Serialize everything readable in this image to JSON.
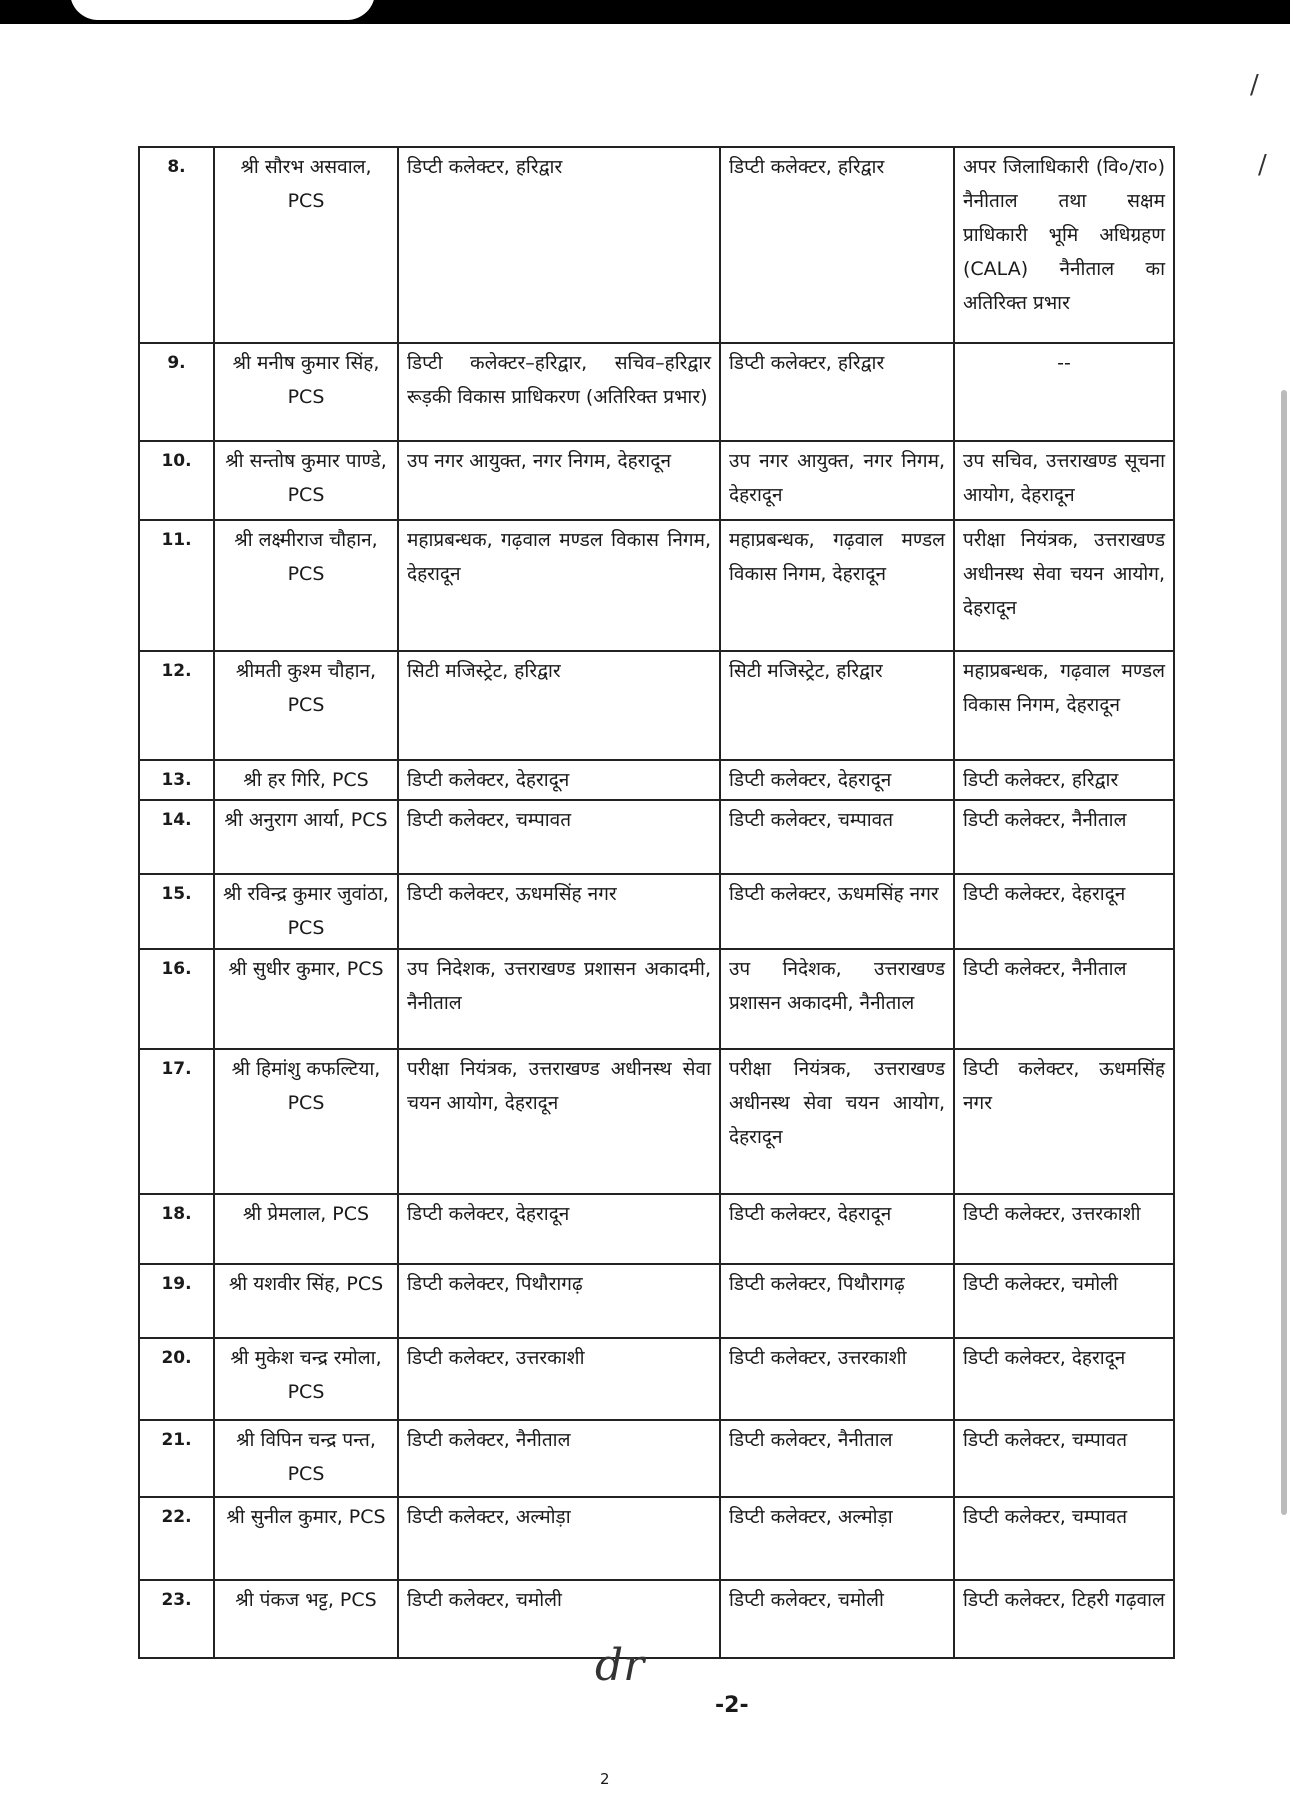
{
  "page": {
    "page_marker": "-2-",
    "page_number": "2",
    "signature": "dr"
  },
  "rows": [
    {
      "no": "8.",
      "name": "श्री सौरभ असवाल, PCS",
      "current": "डिप्टी कलेक्टर, हरिद्वार",
      "retained": "डिप्टी कलेक्टर, हरिद्वार",
      "new": "अपर जिलाधिकारी (वि०/रा०) नैनीताल तथा सक्षम प्राधिकारी भूमि अधिग्रहण (CALA) नैनीताल का अतिरिक्त प्रभार"
    },
    {
      "no": "9.",
      "name": "श्री मनीष कुमार सिंह, PCS",
      "current": "डिप्टी कलेक्टर–हरिद्वार, सचिव–हरिद्वार रूड़की विकास प्राधिकरण (अतिरिक्त प्रभार)",
      "retained": "डिप्टी कलेक्टर, हरिद्वार",
      "new": "--"
    },
    {
      "no": "10.",
      "name": "श्री सन्तोष कुमार पाण्डे, PCS",
      "current": "उप नगर आयुक्त, नगर निगम, देहरादून",
      "retained": "उप नगर आयुक्त, नगर निगम, देहरादून",
      "new": "उप सचिव, उत्तराखण्ड सूचना आयोग, देहरादून"
    },
    {
      "no": "11.",
      "name": "श्री लक्ष्मीराज चौहान, PCS",
      "current": "महाप्रबन्धक, गढ़वाल मण्डल विकास निगम, देहरादून",
      "retained": "महाप्रबन्धक, गढ़वाल मण्डल विकास निगम, देहरादून",
      "new": "परीक्षा नियंत्रक, उत्तराखण्ड अधीनस्थ सेवा चयन आयोग, देहरादून"
    },
    {
      "no": "12.",
      "name": "श्रीमती कुश्म चौहान, PCS",
      "current": "सिटी मजिस्ट्रेट, हरिद्वार",
      "retained": "सिटी मजिस्ट्रेट, हरिद्वार",
      "new": "महाप्रबन्धक, गढ़वाल मण्डल विकास निगम, देहरादून"
    },
    {
      "no": "13.",
      "name": "श्री हर गिरि, PCS",
      "current": "डिप्टी कलेक्टर, देहरादून",
      "retained": "डिप्टी कलेक्टर, देहरादून",
      "new": "डिप्टी कलेक्टर, हरिद्वार"
    },
    {
      "no": "14.",
      "name": "श्री अनुराग आर्या, PCS",
      "current": "डिप्टी कलेक्टर, चम्पावत",
      "retained": "डिप्टी कलेक्टर, चम्पावत",
      "new": "डिप्टी कलेक्टर, नैनीताल"
    },
    {
      "no": "15.",
      "name": "श्री रविन्द्र कुमार जुवांठा, PCS",
      "current": "डिप्टी कलेक्टर, ऊधमसिंह नगर",
      "retained": "डिप्टी कलेक्टर, ऊधमसिंह नगर",
      "new": "डिप्टी कलेक्टर, देहरादून"
    },
    {
      "no": "16.",
      "name": "श्री सुधीर कुमार, PCS",
      "current": "उप निदेशक, उत्तराखण्ड प्रशासन अकादमी, नैनीताल",
      "retained": "उप निदेशक, उत्तराखण्ड प्रशासन अकादमी, नैनीताल",
      "new": "डिप्टी कलेक्टर, नैनीताल"
    },
    {
      "no": "17.",
      "name": "श्री हिमांशु कफल्टिया, PCS",
      "current": "परीक्षा नियंत्रक, उत्तराखण्ड अधीनस्थ सेवा चयन आयोग, देहरादून",
      "retained": "परीक्षा नियंत्रक, उत्तराखण्ड अधीनस्थ सेवा चयन आयोग, देहरादून",
      "new": "डिप्टी कलेक्टर, ऊधमसिंह नगर"
    },
    {
      "no": "18.",
      "name": "श्री प्रेमलाल, PCS",
      "current": "डिप्टी कलेक्टर, देहरादून",
      "retained": "डिप्टी कलेक्टर, देहरादून",
      "new": "डिप्टी कलेक्टर, उत्तरकाशी"
    },
    {
      "no": "19.",
      "name": "श्री यशवीर सिंह, PCS",
      "current": "डिप्टी कलेक्टर, पिथौरागढ़",
      "retained": "डिप्टी कलेक्टर, पिथौरागढ़",
      "new": "डिप्टी कलेक्टर, चमोली"
    },
    {
      "no": "20.",
      "name": "श्री मुकेश चन्द्र रमोला, PCS",
      "current": "डिप्टी कलेक्टर, उत्तरकाशी",
      "retained": "डिप्टी कलेक्टर, उत्तरकाशी",
      "new": "डिप्टी कलेक्टर, देहरादून"
    },
    {
      "no": "21.",
      "name": "श्री विपिन चन्द्र पन्त, PCS",
      "current": "डिप्टी कलेक्टर, नैनीताल",
      "retained": "डिप्टी कलेक्टर, नैनीताल",
      "new": "डिप्टी कलेक्टर, चम्पावत"
    },
    {
      "no": "22.",
      "name": "श्री सुनील कुमार, PCS",
      "current": "डिप्टी कलेक्टर, अल्मोड़ा",
      "retained": "डिप्टी कलेक्टर, अल्मोड़ा",
      "new": "डिप्टी कलेक्टर, चम्पावत"
    },
    {
      "no": "23.",
      "name": "श्री पंकज भट्ट, PCS",
      "current": "डिप्टी कलेक्टर, चमोली",
      "retained": "डिप्टी कलेक्टर, चमोली",
      "new": "डिप्टी कलेक्टर, टिहरी गढ़वाल"
    }
  ]
}
